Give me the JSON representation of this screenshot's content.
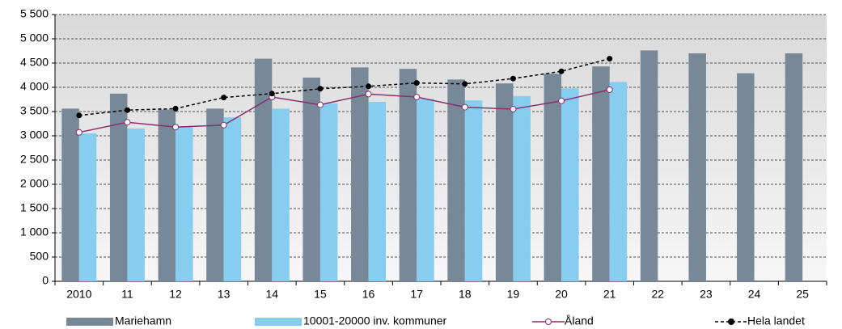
{
  "chart_data": {
    "type": "bar",
    "categories": [
      "2010",
      "11",
      "12",
      "13",
      "14",
      "15",
      "16",
      "17",
      "18",
      "19",
      "20",
      "21",
      "22",
      "23",
      "24",
      "25"
    ],
    "series": [
      {
        "name": "Mariehamn",
        "type": "bar",
        "color": "#778899",
        "values": [
          3560,
          3870,
          3540,
          3560,
          4590,
          4200,
          4410,
          4380,
          4160,
          4080,
          4280,
          4430,
          4760,
          4700,
          4290,
          4700
        ]
      },
      {
        "name": "10001-20000 inv. kommuner",
        "type": "bar",
        "color": "#87cdf0",
        "values": [
          3050,
          3150,
          3200,
          3380,
          3560,
          3670,
          3700,
          3760,
          3730,
          3820,
          3980,
          4110,
          null,
          null,
          null,
          null
        ]
      },
      {
        "name": "Åland",
        "type": "line",
        "color": "#8b2f6e",
        "marker": "open",
        "values": [
          3070,
          3280,
          3180,
          3220,
          3800,
          3640,
          3860,
          3800,
          3590,
          3550,
          3720,
          3950,
          null,
          null,
          null,
          null
        ]
      },
      {
        "name": "Hela landet",
        "type": "line",
        "color": "#000000",
        "marker": "filled",
        "dashed": true,
        "values": [
          3420,
          3530,
          3560,
          3790,
          3870,
          3970,
          4020,
          4090,
          4070,
          4180,
          4330,
          4590,
          null,
          null,
          null,
          null
        ]
      }
    ],
    "ylim": [
      0,
      5500
    ],
    "yticks": [
      0,
      500,
      {
        "value": 1000,
        "label": "1 000"
      },
      {
        "value": 1500,
        "label": "1 500"
      },
      {
        "value": 2000,
        "label": "2 000"
      },
      {
        "value": 2500,
        "label": "2 500"
      },
      {
        "value": 3000,
        "label": "3 000"
      },
      {
        "value": 3500,
        "label": "3 500"
      },
      {
        "value": 4000,
        "label": "4 000"
      },
      {
        "value": 4500,
        "label": "4 500"
      },
      {
        "value": 5000,
        "label": "5 000"
      },
      {
        "value": 5500,
        "label": "5 500"
      }
    ],
    "grid": true,
    "legend": "bottom"
  }
}
